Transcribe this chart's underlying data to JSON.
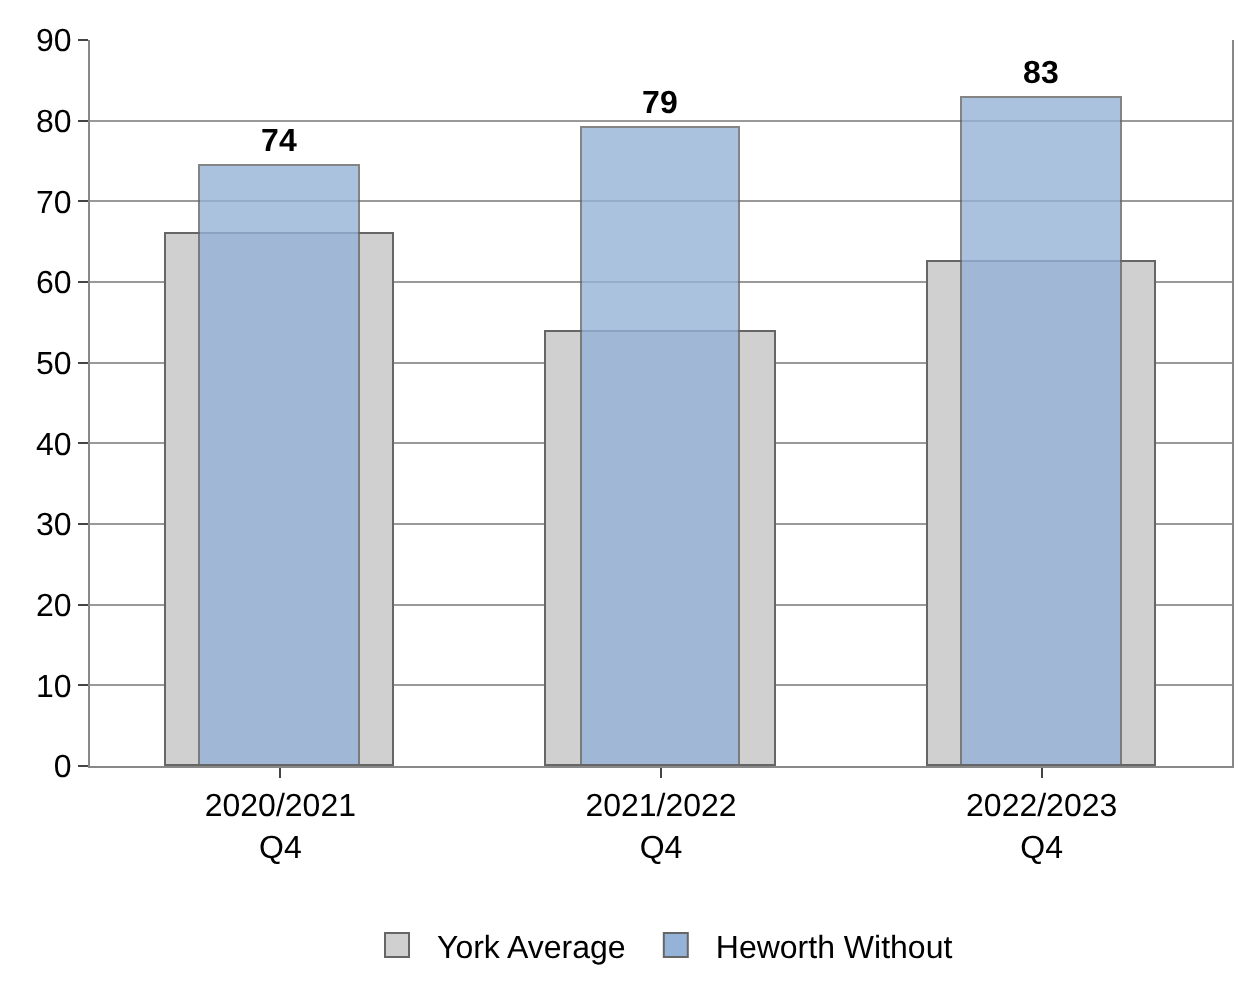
{
  "chart_data": {
    "type": "bar",
    "categories": [
      "2020/2021\nQ4",
      "2021/2022\nQ4",
      "2022/2023\nQ4"
    ],
    "series": [
      {
        "name": "York Average",
        "color": "#d0d0d0",
        "values": [
          66,
          53.7,
          62.4
        ]
      },
      {
        "name": "Heworth Without",
        "color": "#95b3d7",
        "values": [
          74.4,
          79,
          82.7
        ],
        "value_labels": [
          "74",
          "79",
          "83"
        ]
      }
    ],
    "ylim": [
      0,
      90
    ],
    "yticks": [
      0,
      10,
      20,
      30,
      40,
      50,
      60,
      70,
      80,
      90
    ],
    "grid": "y",
    "legend": "bottom"
  }
}
